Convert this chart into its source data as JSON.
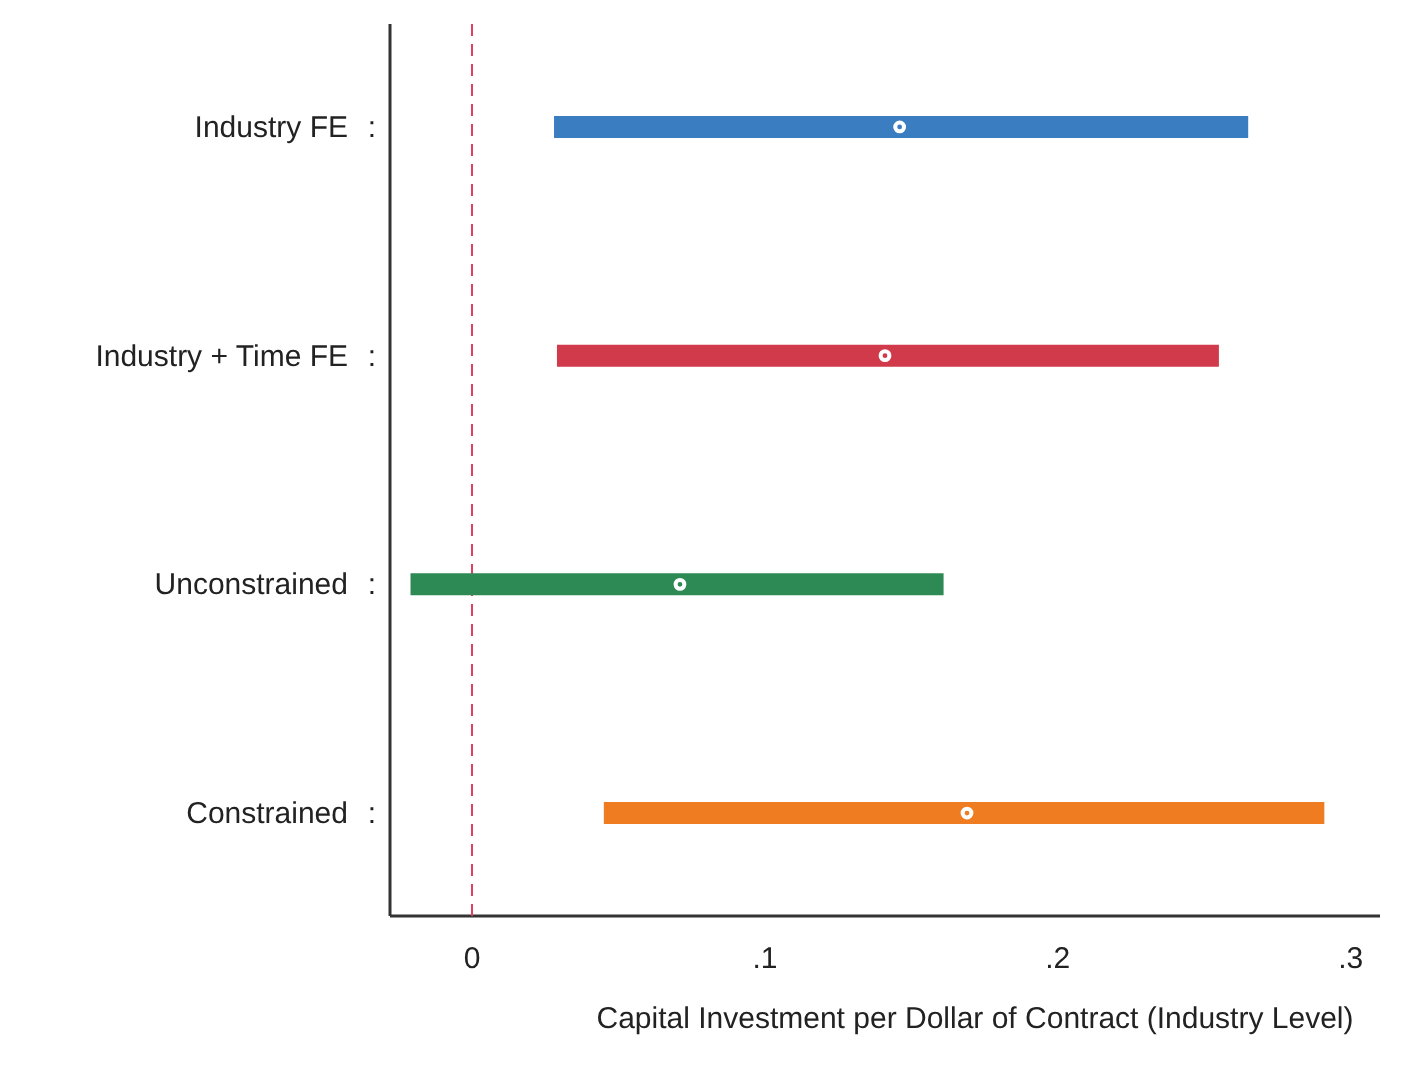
{
  "chart_data": {
    "type": "scatter",
    "orientation": "horizontal",
    "xlabel": "Capital Investment per Dollar of Contract (Industry Level)",
    "categories": [
      "Industry FE",
      "Industry + Time FE",
      "Unconstrained",
      "Constrained"
    ],
    "values": [
      0.146,
      0.141,
      0.071,
      0.169
    ],
    "errors": [
      [
        0.028,
        0.265
      ],
      [
        0.029,
        0.255
      ],
      [
        -0.021,
        0.161
      ],
      [
        0.045,
        0.291
      ]
    ],
    "colors": [
      "#3a7dc0",
      "#d03a4a",
      "#2e8a55",
      "#f07c22"
    ],
    "marker": "circle",
    "annotations": [
      ":",
      ":",
      ":",
      ":"
    ],
    "xlim": [
      -0.028,
      0.31
    ],
    "xticks": [
      {
        "value": 0,
        "label": "0"
      },
      {
        "value": 0.1,
        "label": ".1"
      },
      {
        "value": 0.2,
        "label": ".2"
      },
      {
        "value": 0.3,
        "label": ".3"
      }
    ],
    "ref_lines": [
      {
        "axis": "x",
        "value": 0,
        "color": "#e04060",
        "line_style": "dashed"
      }
    ],
    "grid": false
  }
}
